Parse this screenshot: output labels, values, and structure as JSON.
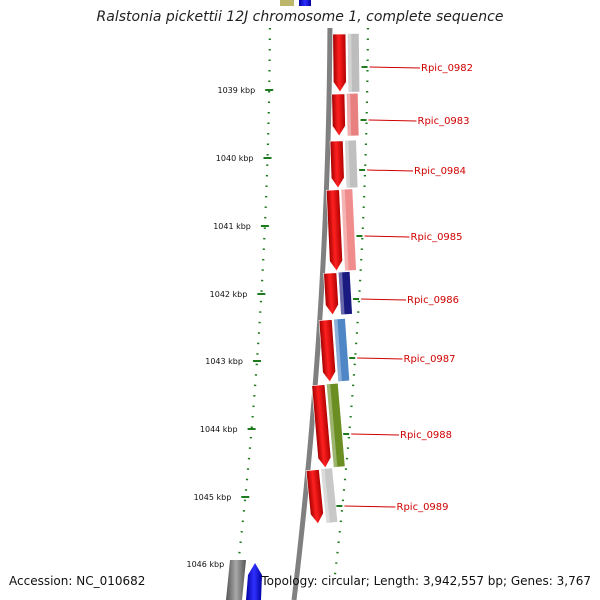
{
  "title": "Ralstonia pickettii 12J chromosome 1, complete sequence",
  "footer": {
    "accession": "Accession: NC_010682",
    "stats": "Topology: circular; Length: 3,942,557 bp; Genes: 3,767"
  },
  "ticks": [
    {
      "label": "1039 kbp"
    },
    {
      "label": "1040 kbp"
    },
    {
      "label": "1041 kbp"
    },
    {
      "label": "1042 kbp"
    },
    {
      "label": "1043 kbp"
    },
    {
      "label": "1044 kbp"
    },
    {
      "label": "1045 kbp"
    },
    {
      "label": "1046 kbp"
    }
  ],
  "genes": [
    {
      "name": "Rpic_0982",
      "strand": "+",
      "cog_color": "#bdbdbd"
    },
    {
      "name": "Rpic_0983",
      "strand": "+",
      "cog_color": "#e88080"
    },
    {
      "name": "Rpic_0984",
      "strand": "+",
      "cog_color": "#c0c0c0"
    },
    {
      "name": "Rpic_0985",
      "strand": "+",
      "cog_color": "#f08c8c"
    },
    {
      "name": "Rpic_0986",
      "strand": "+",
      "cog_color": "#1a1a80"
    },
    {
      "name": "Rpic_0987",
      "strand": "+",
      "cog_color": "#4f86c6"
    },
    {
      "name": "Rpic_0988",
      "strand": "+",
      "cog_color": "#6b8e23"
    },
    {
      "name": "Rpic_0989",
      "strand": "+",
      "cog_color": "#c8c8c8"
    }
  ],
  "colors": {
    "gene_forward": "#e00000",
    "backbone": "#808080",
    "tick_marks": "#1e7a1e",
    "label_text": "#d00000",
    "blue_gene": "#0000ee",
    "olive_gene": "#bdb76b"
  }
}
